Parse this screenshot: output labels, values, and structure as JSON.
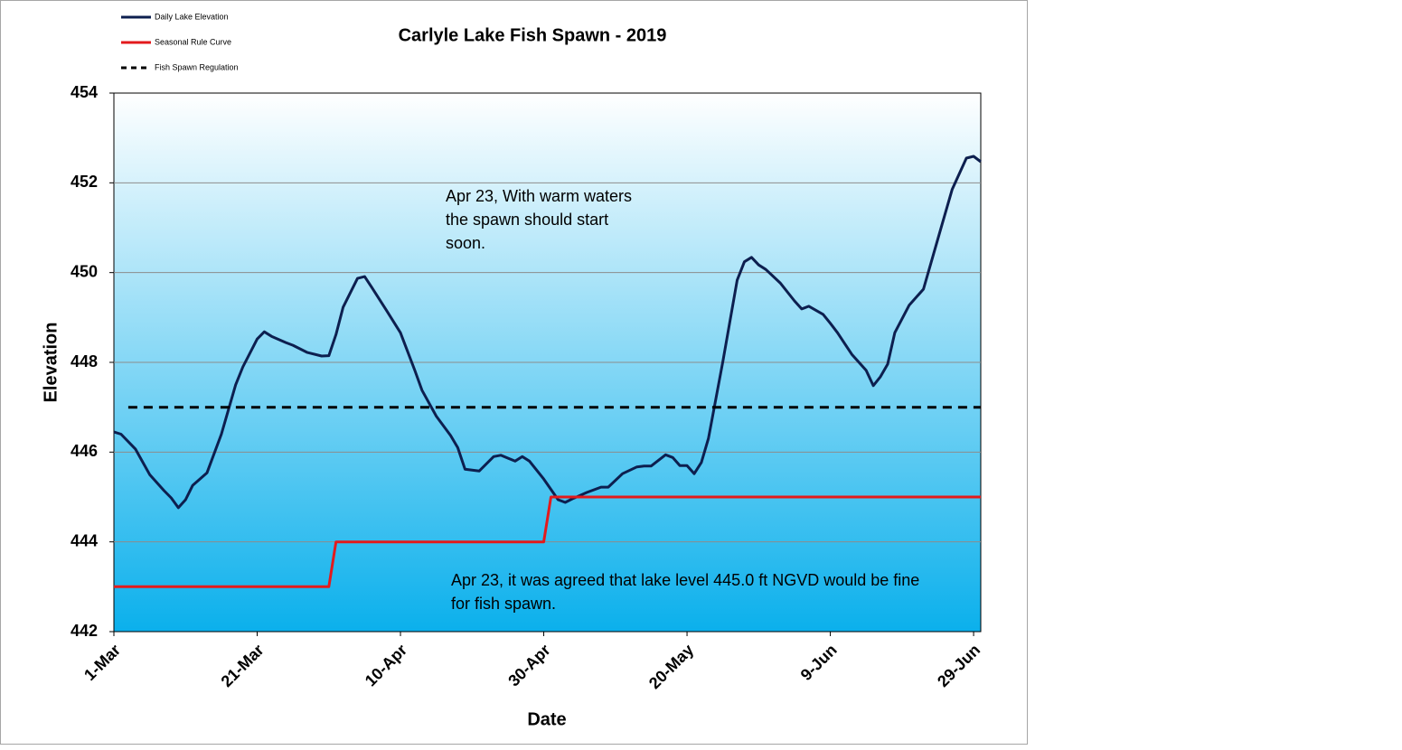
{
  "chart_data": {
    "type": "line",
    "title": "Carlyle Lake Fish Spawn - 2019",
    "xlabel": "Date",
    "ylabel": "Elevation",
    "xlim": [
      "1-Mar",
      "30-Jun"
    ],
    "xticks": [
      "1-Mar",
      "21-Mar",
      "10-Apr",
      "30-Apr",
      "20-May",
      "9-Jun",
      "29-Jun"
    ],
    "ylim": [
      442,
      454
    ],
    "yticks": [
      442,
      444,
      446,
      448,
      450,
      452,
      454
    ],
    "grid": true,
    "legend": "top-left",
    "annotations": [
      "Apr 23, With warm waters the spawn should start soon.",
      "Apr 23, it was agreed that lake level 445.0 ft NGVD would be fine for fish spawn."
    ],
    "series": [
      {
        "name": "Daily Lake Elevation",
        "color": "#0d1f4f",
        "style": "solid",
        "x": [
          "1-Mar",
          "2-Mar",
          "4-Mar",
          "6-Mar",
          "8-Mar",
          "9-Mar",
          "10-Mar",
          "11-Mar",
          "12-Mar",
          "14-Mar",
          "16-Mar",
          "18-Mar",
          "19-Mar",
          "21-Mar",
          "22-Mar",
          "23-Mar",
          "25-Mar",
          "26-Mar",
          "28-Mar",
          "30-Mar",
          "31-Mar",
          "1-Apr",
          "2-Apr",
          "4-Apr",
          "5-Apr",
          "6-Apr",
          "8-Apr",
          "10-Apr",
          "12-Apr",
          "13-Apr",
          "15-Apr",
          "17-Apr",
          "18-Apr",
          "19-Apr",
          "20-Apr",
          "21-Apr",
          "23-Apr",
          "24-Apr",
          "26-Apr",
          "27-Apr",
          "28-Apr",
          "30-Apr",
          "2-May",
          "3-May",
          "4-May",
          "6-May",
          "8-May",
          "9-May",
          "11-May",
          "13-May",
          "14-May",
          "15-May",
          "17-May",
          "18-May",
          "19-May",
          "20-May",
          "21-May",
          "22-May",
          "23-May",
          "25-May",
          "27-May",
          "28-May",
          "29-May",
          "30-May",
          "31-May",
          "2-Jun",
          "4-Jun",
          "5-Jun",
          "6-Jun",
          "8-Jun",
          "9-Jun",
          "10-Jun",
          "12-Jun",
          "14-Jun",
          "15-Jun",
          "16-Jun",
          "17-Jun",
          "18-Jun",
          "20-Jun",
          "22-Jun",
          "24-Jun",
          "26-Jun",
          "28-Jun",
          "29-Jun",
          "30-Jun"
        ],
        "values": [
          446.45,
          446.4,
          446.07,
          445.5,
          445.14,
          444.98,
          444.76,
          444.94,
          445.26,
          445.54,
          446.4,
          447.5,
          447.9,
          448.52,
          448.68,
          448.58,
          448.44,
          448.38,
          448.22,
          448.14,
          448.15,
          448.62,
          449.23,
          449.87,
          449.91,
          449.67,
          449.17,
          448.66,
          447.82,
          447.38,
          446.8,
          446.37,
          446.1,
          445.62,
          445.6,
          445.58,
          445.9,
          445.93,
          445.8,
          445.9,
          445.8,
          445.4,
          444.94,
          444.88,
          444.96,
          445.1,
          445.22,
          445.22,
          445.52,
          445.67,
          445.69,
          445.69,
          445.94,
          445.88,
          445.7,
          445.7,
          445.52,
          445.77,
          446.31,
          448.02,
          449.83,
          450.24,
          450.34,
          450.17,
          450.07,
          449.77,
          449.37,
          449.19,
          449.25,
          449.07,
          448.87,
          448.66,
          448.18,
          447.82,
          447.48,
          447.68,
          447.96,
          448.66,
          449.27,
          449.63,
          450.74,
          451.85,
          452.55,
          452.59,
          452.47
        ]
      },
      {
        "name": "Seasonal Rule Curve",
        "color": "#e31a1c",
        "style": "solid",
        "x": [
          "1-Mar",
          "31-Mar",
          "1-Apr",
          "30-Apr",
          "1-May",
          "30-Jun"
        ],
        "values": [
          443,
          443,
          444,
          444,
          445,
          445
        ]
      },
      {
        "name": "Fish Spawn Regulation",
        "color": "#000000",
        "style": "dashed",
        "x": [
          "3-Mar",
          "30-Jun"
        ],
        "values": [
          447,
          447
        ]
      }
    ]
  }
}
